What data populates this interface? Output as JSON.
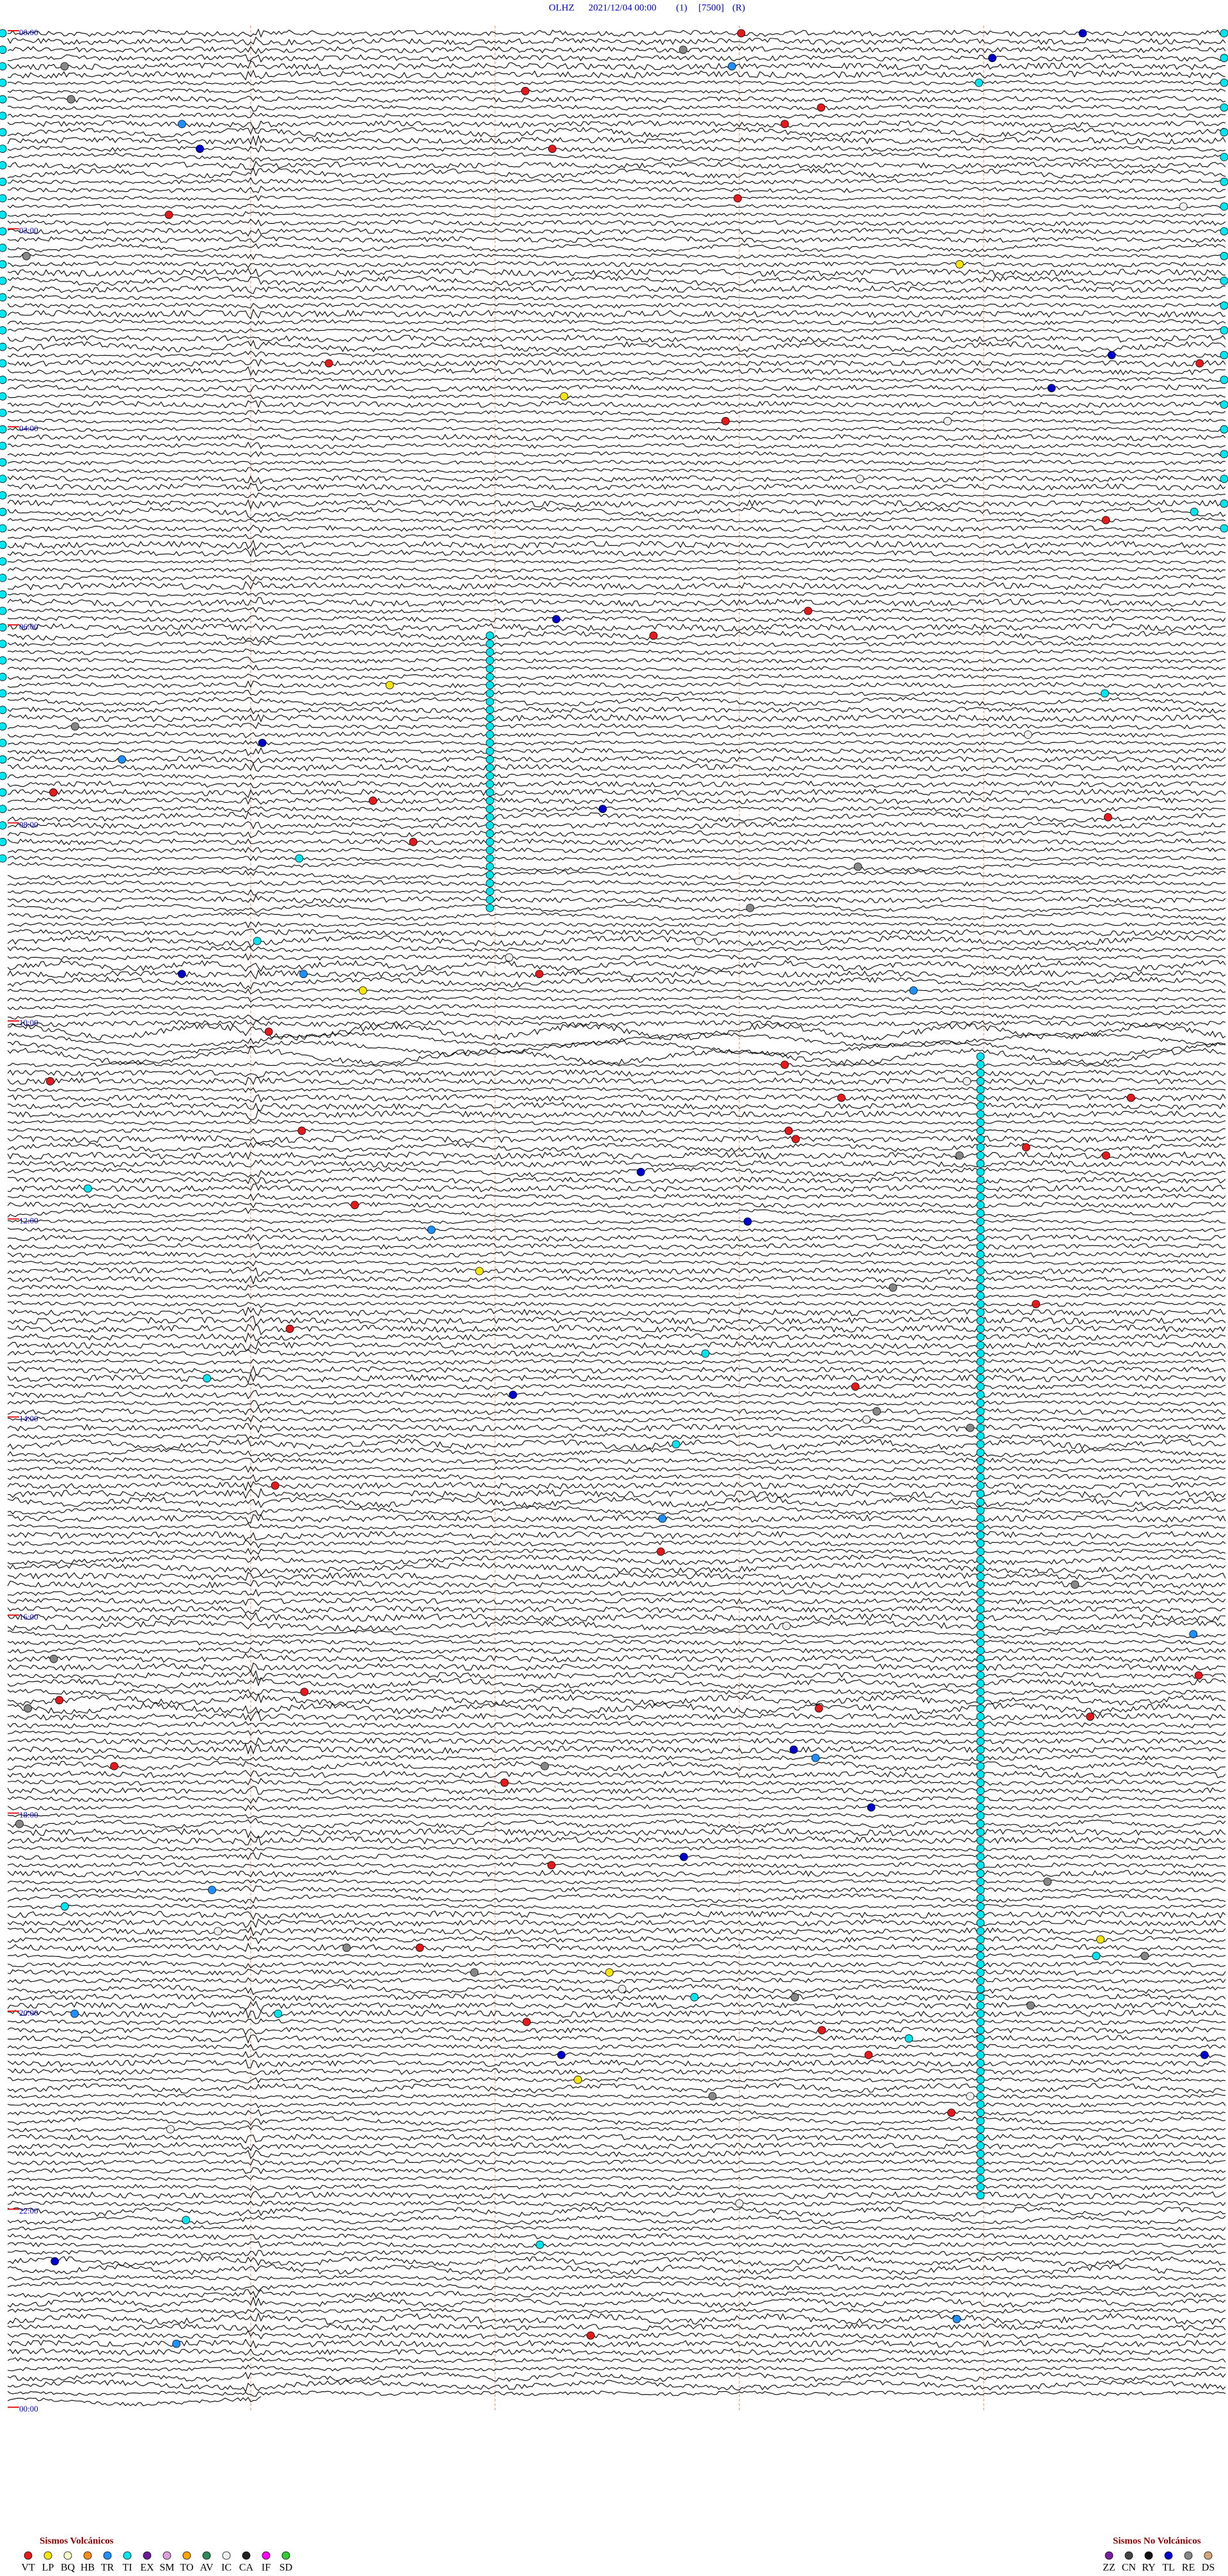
{
  "header": {
    "station": "OLHZ",
    "datetime": "2021/12/04 00:00",
    "channel": "(1)",
    "scale": "[7500]",
    "mode": "(R)"
  },
  "time_labels": [
    "00:00",
    "02:00",
    "04:00",
    "06:00",
    "08:00",
    "10:00",
    "12:00",
    "14:00",
    "16:00",
    "18:00",
    "20:00",
    "22:00",
    "00:00"
  ],
  "legend_volcanic": {
    "title": "Sismos Volcánicos",
    "items": [
      {
        "code": "VT",
        "color": "#e41a1c"
      },
      {
        "code": "LP",
        "color": "#f5e50a"
      },
      {
        "code": "BQ",
        "color": "#ffffcc"
      },
      {
        "code": "HB",
        "color": "#ff8c1a"
      },
      {
        "code": "TR",
        "color": "#1e90ff"
      },
      {
        "code": "TI",
        "color": "#00e5ee"
      },
      {
        "code": "EX",
        "color": "#6a1b9a"
      },
      {
        "code": "SM",
        "color": "#dda0dd"
      },
      {
        "code": "TO",
        "color": "#ffa500"
      },
      {
        "code": "AV",
        "color": "#2e8b57"
      },
      {
        "code": "IC",
        "color": "#f0f0f0"
      },
      {
        "code": "CA",
        "color": "#222222"
      },
      {
        "code": "IF",
        "color": "#ff00ff"
      },
      {
        "code": "SD",
        "color": "#32cd32"
      }
    ]
  },
  "legend_non_volcanic": {
    "title": "Sismos No Volcánicos",
    "items": [
      {
        "code": "ZZ",
        "color": "#7b1fa2"
      },
      {
        "code": "CN",
        "color": "#444444"
      },
      {
        "code": "RY",
        "color": "#111111"
      },
      {
        "code": "TL",
        "color": "#0000cd"
      },
      {
        "code": "RE",
        "color": "#888888"
      },
      {
        "code": "DS",
        "color": "#d2a679"
      }
    ]
  }
}
